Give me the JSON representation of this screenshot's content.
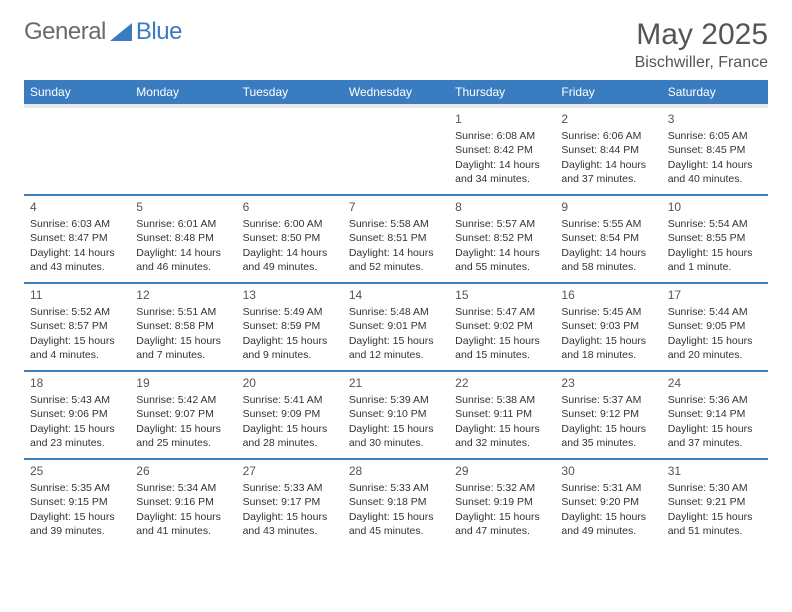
{
  "logo": {
    "part1": "General",
    "part2": "Blue"
  },
  "header": {
    "month_title": "May 2025",
    "location": "Bischwiller, France"
  },
  "colors": {
    "header_bg": "#3a7cc0",
    "header_fg": "#ffffff",
    "divider": "#3a7cc0",
    "gray_band": "#e8e8e8",
    "text": "#333333",
    "muted": "#555555",
    "background": "#ffffff"
  },
  "typography": {
    "title_fontsize": 30,
    "location_fontsize": 16,
    "weekday_fontsize": 12,
    "daynum_fontsize": 12,
    "body_fontsize": 10.5
  },
  "weekdays": [
    "Sunday",
    "Monday",
    "Tuesday",
    "Wednesday",
    "Thursday",
    "Friday",
    "Saturday"
  ],
  "weeks": [
    [
      null,
      null,
      null,
      null,
      {
        "num": "1",
        "sunrise": "Sunrise: 6:08 AM",
        "sunset": "Sunset: 8:42 PM",
        "daylight1": "Daylight: 14 hours",
        "daylight2": "and 34 minutes."
      },
      {
        "num": "2",
        "sunrise": "Sunrise: 6:06 AM",
        "sunset": "Sunset: 8:44 PM",
        "daylight1": "Daylight: 14 hours",
        "daylight2": "and 37 minutes."
      },
      {
        "num": "3",
        "sunrise": "Sunrise: 6:05 AM",
        "sunset": "Sunset: 8:45 PM",
        "daylight1": "Daylight: 14 hours",
        "daylight2": "and 40 minutes."
      }
    ],
    [
      {
        "num": "4",
        "sunrise": "Sunrise: 6:03 AM",
        "sunset": "Sunset: 8:47 PM",
        "daylight1": "Daylight: 14 hours",
        "daylight2": "and 43 minutes."
      },
      {
        "num": "5",
        "sunrise": "Sunrise: 6:01 AM",
        "sunset": "Sunset: 8:48 PM",
        "daylight1": "Daylight: 14 hours",
        "daylight2": "and 46 minutes."
      },
      {
        "num": "6",
        "sunrise": "Sunrise: 6:00 AM",
        "sunset": "Sunset: 8:50 PM",
        "daylight1": "Daylight: 14 hours",
        "daylight2": "and 49 minutes."
      },
      {
        "num": "7",
        "sunrise": "Sunrise: 5:58 AM",
        "sunset": "Sunset: 8:51 PM",
        "daylight1": "Daylight: 14 hours",
        "daylight2": "and 52 minutes."
      },
      {
        "num": "8",
        "sunrise": "Sunrise: 5:57 AM",
        "sunset": "Sunset: 8:52 PM",
        "daylight1": "Daylight: 14 hours",
        "daylight2": "and 55 minutes."
      },
      {
        "num": "9",
        "sunrise": "Sunrise: 5:55 AM",
        "sunset": "Sunset: 8:54 PM",
        "daylight1": "Daylight: 14 hours",
        "daylight2": "and 58 minutes."
      },
      {
        "num": "10",
        "sunrise": "Sunrise: 5:54 AM",
        "sunset": "Sunset: 8:55 PM",
        "daylight1": "Daylight: 15 hours",
        "daylight2": "and 1 minute."
      }
    ],
    [
      {
        "num": "11",
        "sunrise": "Sunrise: 5:52 AM",
        "sunset": "Sunset: 8:57 PM",
        "daylight1": "Daylight: 15 hours",
        "daylight2": "and 4 minutes."
      },
      {
        "num": "12",
        "sunrise": "Sunrise: 5:51 AM",
        "sunset": "Sunset: 8:58 PM",
        "daylight1": "Daylight: 15 hours",
        "daylight2": "and 7 minutes."
      },
      {
        "num": "13",
        "sunrise": "Sunrise: 5:49 AM",
        "sunset": "Sunset: 8:59 PM",
        "daylight1": "Daylight: 15 hours",
        "daylight2": "and 9 minutes."
      },
      {
        "num": "14",
        "sunrise": "Sunrise: 5:48 AM",
        "sunset": "Sunset: 9:01 PM",
        "daylight1": "Daylight: 15 hours",
        "daylight2": "and 12 minutes."
      },
      {
        "num": "15",
        "sunrise": "Sunrise: 5:47 AM",
        "sunset": "Sunset: 9:02 PM",
        "daylight1": "Daylight: 15 hours",
        "daylight2": "and 15 minutes."
      },
      {
        "num": "16",
        "sunrise": "Sunrise: 5:45 AM",
        "sunset": "Sunset: 9:03 PM",
        "daylight1": "Daylight: 15 hours",
        "daylight2": "and 18 minutes."
      },
      {
        "num": "17",
        "sunrise": "Sunrise: 5:44 AM",
        "sunset": "Sunset: 9:05 PM",
        "daylight1": "Daylight: 15 hours",
        "daylight2": "and 20 minutes."
      }
    ],
    [
      {
        "num": "18",
        "sunrise": "Sunrise: 5:43 AM",
        "sunset": "Sunset: 9:06 PM",
        "daylight1": "Daylight: 15 hours",
        "daylight2": "and 23 minutes."
      },
      {
        "num": "19",
        "sunrise": "Sunrise: 5:42 AM",
        "sunset": "Sunset: 9:07 PM",
        "daylight1": "Daylight: 15 hours",
        "daylight2": "and 25 minutes."
      },
      {
        "num": "20",
        "sunrise": "Sunrise: 5:41 AM",
        "sunset": "Sunset: 9:09 PM",
        "daylight1": "Daylight: 15 hours",
        "daylight2": "and 28 minutes."
      },
      {
        "num": "21",
        "sunrise": "Sunrise: 5:39 AM",
        "sunset": "Sunset: 9:10 PM",
        "daylight1": "Daylight: 15 hours",
        "daylight2": "and 30 minutes."
      },
      {
        "num": "22",
        "sunrise": "Sunrise: 5:38 AM",
        "sunset": "Sunset: 9:11 PM",
        "daylight1": "Daylight: 15 hours",
        "daylight2": "and 32 minutes."
      },
      {
        "num": "23",
        "sunrise": "Sunrise: 5:37 AM",
        "sunset": "Sunset: 9:12 PM",
        "daylight1": "Daylight: 15 hours",
        "daylight2": "and 35 minutes."
      },
      {
        "num": "24",
        "sunrise": "Sunrise: 5:36 AM",
        "sunset": "Sunset: 9:14 PM",
        "daylight1": "Daylight: 15 hours",
        "daylight2": "and 37 minutes."
      }
    ],
    [
      {
        "num": "25",
        "sunrise": "Sunrise: 5:35 AM",
        "sunset": "Sunset: 9:15 PM",
        "daylight1": "Daylight: 15 hours",
        "daylight2": "and 39 minutes."
      },
      {
        "num": "26",
        "sunrise": "Sunrise: 5:34 AM",
        "sunset": "Sunset: 9:16 PM",
        "daylight1": "Daylight: 15 hours",
        "daylight2": "and 41 minutes."
      },
      {
        "num": "27",
        "sunrise": "Sunrise: 5:33 AM",
        "sunset": "Sunset: 9:17 PM",
        "daylight1": "Daylight: 15 hours",
        "daylight2": "and 43 minutes."
      },
      {
        "num": "28",
        "sunrise": "Sunrise: 5:33 AM",
        "sunset": "Sunset: 9:18 PM",
        "daylight1": "Daylight: 15 hours",
        "daylight2": "and 45 minutes."
      },
      {
        "num": "29",
        "sunrise": "Sunrise: 5:32 AM",
        "sunset": "Sunset: 9:19 PM",
        "daylight1": "Daylight: 15 hours",
        "daylight2": "and 47 minutes."
      },
      {
        "num": "30",
        "sunrise": "Sunrise: 5:31 AM",
        "sunset": "Sunset: 9:20 PM",
        "daylight1": "Daylight: 15 hours",
        "daylight2": "and 49 minutes."
      },
      {
        "num": "31",
        "sunrise": "Sunrise: 5:30 AM",
        "sunset": "Sunset: 9:21 PM",
        "daylight1": "Daylight: 15 hours",
        "daylight2": "and 51 minutes."
      }
    ]
  ]
}
